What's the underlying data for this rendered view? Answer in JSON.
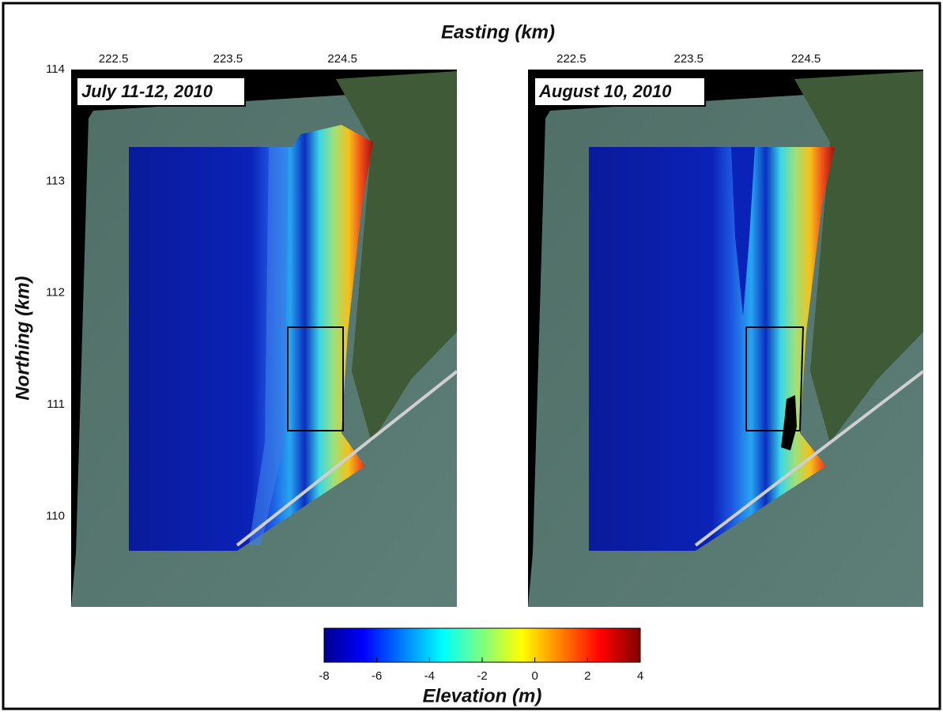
{
  "x_axis": {
    "label": "Easting (km)",
    "ticks": [
      222.5,
      223.5,
      224.5
    ],
    "range": [
      222.13,
      225.5
    ]
  },
  "y_axis": {
    "label": "Northing (km)",
    "ticks": [
      114,
      113,
      112,
      111,
      110
    ],
    "range": [
      109.19,
      114
    ]
  },
  "panels": [
    {
      "label": "July 11-12, 2010"
    },
    {
      "label": "August 10, 2010"
    }
  ],
  "colorbar": {
    "label": "Elevation (m)",
    "ticks": [
      -8,
      -6,
      -4,
      -2,
      0,
      2,
      4
    ],
    "range": [
      -8,
      4
    ]
  }
}
